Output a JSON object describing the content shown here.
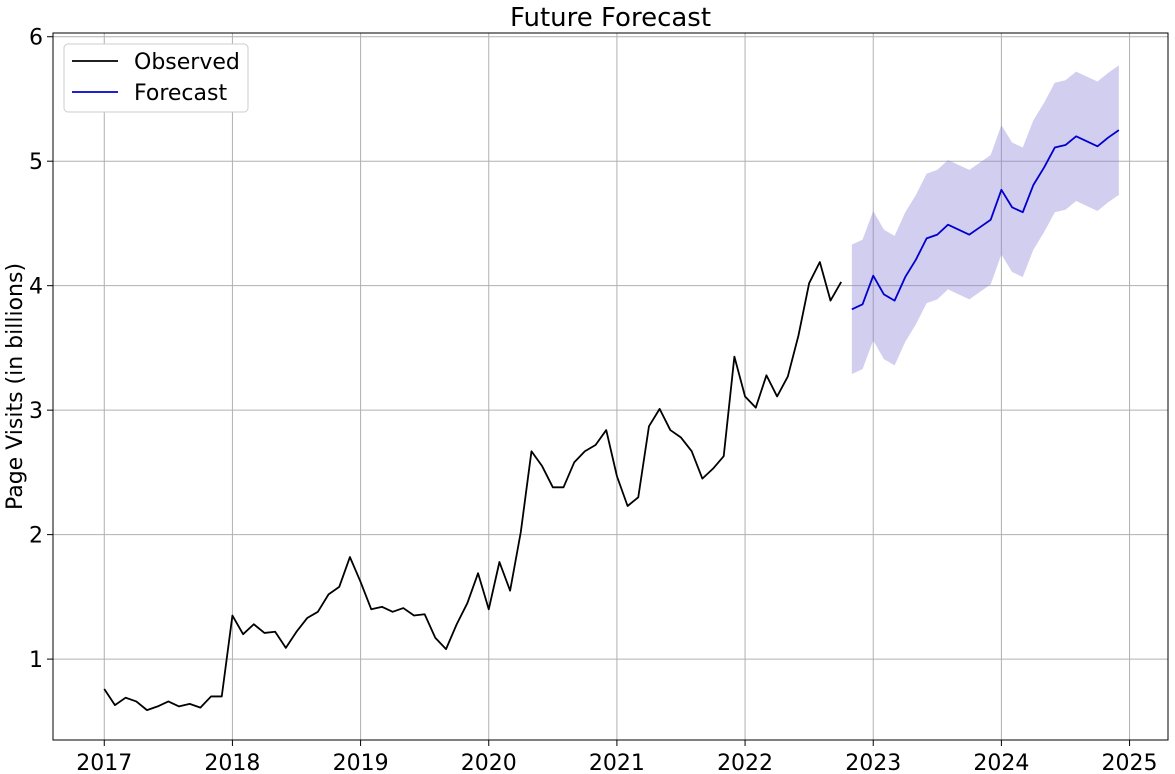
{
  "chart_data": {
    "type": "line",
    "title": "Future Forecast",
    "xlabel": "",
    "ylabel": "Page Visits (in billions)",
    "xlim": [
      2016.6,
      2025.3
    ],
    "ylim": [
      0.35,
      6.03
    ],
    "x_ticks": [
      "2017",
      "2018",
      "2019",
      "2020",
      "2021",
      "2022",
      "2023",
      "2024",
      "2025"
    ],
    "y_ticks": [
      "1",
      "2",
      "3",
      "4",
      "5",
      "6"
    ],
    "grid": true,
    "legend_position": "top-left",
    "series": [
      {
        "name": "Observed",
        "color": "#000000",
        "start": "2017-01",
        "values": [
          0.76,
          0.63,
          0.69,
          0.66,
          0.59,
          0.62,
          0.66,
          0.62,
          0.64,
          0.61,
          0.7,
          0.7,
          1.35,
          1.2,
          1.28,
          1.21,
          1.22,
          1.09,
          1.22,
          1.33,
          1.38,
          1.52,
          1.58,
          1.82,
          1.62,
          1.4,
          1.42,
          1.38,
          1.41,
          1.35,
          1.36,
          1.17,
          1.08,
          1.28,
          1.45,
          1.69,
          1.4,
          1.78,
          1.55,
          2.02,
          2.67,
          2.55,
          2.38,
          2.38,
          2.58,
          2.67,
          2.72,
          2.84,
          2.47,
          2.23,
          2.3,
          2.87,
          3.01,
          2.84,
          2.78,
          2.67,
          2.45,
          2.53,
          2.63,
          3.43,
          3.11,
          3.02,
          3.28,
          3.11,
          3.27,
          3.6,
          4.02,
          4.19,
          3.88,
          4.03
        ]
      },
      {
        "name": "Forecast",
        "color": "#0000cd",
        "band_color": "#8a7fd6",
        "start": "2022-11",
        "values": [
          3.81,
          3.85,
          4.08,
          3.93,
          3.88,
          4.07,
          4.21,
          4.38,
          4.41,
          4.49,
          4.45,
          4.41,
          4.47,
          4.53,
          4.77,
          4.63,
          4.59,
          4.81,
          4.95,
          5.11,
          5.13,
          5.2,
          5.16,
          5.12,
          5.19,
          5.25
        ],
        "lower": [
          3.29,
          3.33,
          3.56,
          3.41,
          3.36,
          3.55,
          3.69,
          3.86,
          3.89,
          3.97,
          3.93,
          3.89,
          3.95,
          4.01,
          4.25,
          4.11,
          4.07,
          4.29,
          4.43,
          4.59,
          4.61,
          4.68,
          4.64,
          4.6,
          4.67,
          4.73
        ],
        "upper": [
          4.33,
          4.37,
          4.6,
          4.45,
          4.4,
          4.59,
          4.73,
          4.9,
          4.93,
          5.01,
          4.97,
          4.93,
          4.99,
          5.05,
          5.29,
          5.15,
          5.11,
          5.33,
          5.47,
          5.63,
          5.65,
          5.72,
          5.68,
          5.64,
          5.71,
          5.77
        ]
      }
    ]
  }
}
